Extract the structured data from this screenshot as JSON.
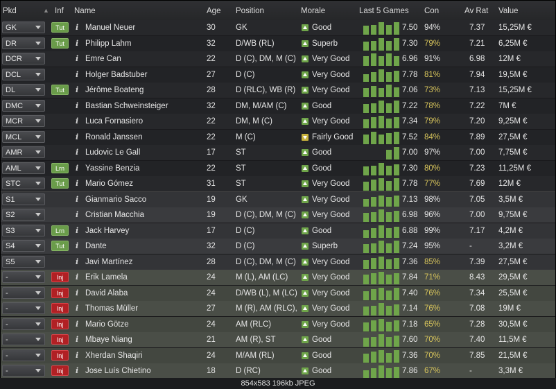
{
  "headers": {
    "pkd": "Pkd",
    "inf": "Inf",
    "name": "Name",
    "age": "Age",
    "position": "Position",
    "morale": "Morale",
    "last5": "Last 5 Games",
    "con": "Con",
    "avrat": "Av Rat",
    "value": "Value"
  },
  "colors": {
    "morale_good": "#6fa54a",
    "morale_fair": "#c8b23d",
    "bar": "#6fa54a",
    "con_low": "#d7c45b",
    "tut_badge": "#6a9c4a",
    "inj_badge": "#b12024"
  },
  "players": [
    {
      "pkd": "GK",
      "inf": "Tut",
      "name": "Manuel Neuer",
      "age": "30",
      "position": "GK",
      "morale": "Good",
      "morale_icon": "up",
      "bars": [
        0.7,
        0.8,
        1.0,
        0.8,
        1.0
      ],
      "rating": "7.50",
      "con": "94%",
      "con_low": false,
      "avrat": "7.37",
      "value": "15,25M €"
    },
    {
      "pkd": "DR",
      "inf": "Tut",
      "name": "Philipp Lahm",
      "age": "32",
      "position": "D/WB (RL)",
      "morale": "Superb",
      "morale_icon": "up",
      "bars": [
        0.7,
        0.8,
        1.0,
        0.8,
        1.0
      ],
      "rating": "7.30",
      "con": "79%",
      "con_low": true,
      "avrat": "7.21",
      "value": "6,25M €"
    },
    {
      "pkd": "DCR",
      "inf": "",
      "name": "Emre Can",
      "age": "22",
      "position": "D (C), DM, M (C)",
      "morale": "Very Good",
      "morale_icon": "up",
      "bars": [
        0.8,
        1.0,
        0.8,
        1.0,
        0.8
      ],
      "rating": "6.96",
      "con": "91%",
      "con_low": false,
      "avrat": "6.98",
      "value": "12M €"
    },
    {
      "pkd": "DCL",
      "inf": "",
      "name": "Holger Badstuber",
      "age": "27",
      "position": "D (C)",
      "morale": "Very Good",
      "morale_icon": "up",
      "bars": [
        0.6,
        0.8,
        1.0,
        0.8,
        0.9
      ],
      "rating": "7.78",
      "con": "81%",
      "con_low": true,
      "avrat": "7.94",
      "value": "19,5M €"
    },
    {
      "pkd": "DL",
      "inf": "Tut",
      "name": "Jérôme Boateng",
      "age": "28",
      "position": "D (RLC), WB (R)",
      "morale": "Very Good",
      "morale_icon": "up",
      "bars": [
        0.7,
        0.9,
        0.7,
        1.0,
        0.8
      ],
      "rating": "7.06",
      "con": "73%",
      "con_low": true,
      "avrat": "7.13",
      "value": "15,25M €"
    },
    {
      "pkd": "DMC",
      "inf": "",
      "name": "Bastian Schweinsteiger",
      "age": "32",
      "position": "DM, M/AM (C)",
      "morale": "Good",
      "morale_icon": "up",
      "bars": [
        0.7,
        0.8,
        1.0,
        0.8,
        1.0
      ],
      "rating": "7.22",
      "con": "78%",
      "con_low": true,
      "avrat": "7.22",
      "value": "7M €"
    },
    {
      "pkd": "MCR",
      "inf": "",
      "name": "Luca Fornasiero",
      "age": "22",
      "position": "DM, M (C)",
      "morale": "Very Good",
      "morale_icon": "up",
      "bars": [
        0.7,
        0.9,
        1.0,
        0.8,
        0.9
      ],
      "rating": "7.34",
      "con": "79%",
      "con_low": true,
      "avrat": "7.20",
      "value": "9,25M €"
    },
    {
      "pkd": "MCL",
      "inf": "",
      "name": "Ronald Janssen",
      "age": "22",
      "position": "M (C)",
      "morale": "Fairly Good",
      "morale_icon": "down",
      "bars": [
        0.8,
        1.0,
        0.8,
        0.9,
        1.0
      ],
      "rating": "7.52",
      "con": "84%",
      "con_low": true,
      "avrat": "7.89",
      "value": "27,5M €"
    },
    {
      "pkd": "AMR",
      "inf": "",
      "name": "Ludovic Le Gall",
      "age": "17",
      "position": "ST",
      "morale": "Good",
      "morale_icon": "up",
      "bars": [
        0,
        0,
        0,
        0.8,
        1.0
      ],
      "rating": "7.00",
      "con": "97%",
      "con_low": false,
      "avrat": "7.00",
      "value": "7,75M €"
    },
    {
      "pkd": "AML",
      "inf": "Lrn",
      "name": "Yassine Benzia",
      "age": "22",
      "position": "ST",
      "morale": "Good",
      "morale_icon": "up",
      "bars": [
        0.7,
        0.8,
        1.0,
        0.8,
        0.9
      ],
      "rating": "7.30",
      "con": "80%",
      "con_low": true,
      "avrat": "7.23",
      "value": "11,25M €"
    },
    {
      "pkd": "STC",
      "inf": "Tut",
      "name": "Mario Gómez",
      "age": "31",
      "position": "ST",
      "morale": "Very Good",
      "morale_icon": "up",
      "bars": [
        0.7,
        0.9,
        1.0,
        0.8,
        1.0
      ],
      "rating": "7.78",
      "con": "77%",
      "con_low": true,
      "avrat": "7.69",
      "value": "12M €"
    },
    {
      "pkd": "S1",
      "inf": "",
      "name": "Gianmario Sacco",
      "age": "19",
      "position": "GK",
      "morale": "Very Good",
      "morale_icon": "up",
      "bars": [
        0.6,
        0.8,
        0.9,
        0.8,
        0.9
      ],
      "rating": "7.13",
      "con": "98%",
      "con_low": false,
      "avrat": "7.05",
      "value": "3,5M €"
    },
    {
      "pkd": "S2",
      "inf": "",
      "name": "Cristian Macchia",
      "age": "19",
      "position": "D (C), DM, M (C)",
      "morale": "Very Good",
      "morale_icon": "up",
      "bars": [
        0.7,
        0.8,
        1.0,
        0.8,
        0.9
      ],
      "rating": "6.98",
      "con": "96%",
      "con_low": false,
      "avrat": "7.00",
      "value": "9,75M €"
    },
    {
      "pkd": "S3",
      "inf": "Lrn",
      "name": "Jack Harvey",
      "age": "17",
      "position": "D (C)",
      "morale": "Good",
      "morale_icon": "up",
      "bars": [
        0.6,
        0.8,
        1.0,
        0.8,
        0.9
      ],
      "rating": "6.88",
      "con": "99%",
      "con_low": false,
      "avrat": "7.17",
      "value": "4,2M €"
    },
    {
      "pkd": "S4",
      "inf": "Tut",
      "name": "Dante",
      "age": "32",
      "position": "D (C)",
      "morale": "Superb",
      "morale_icon": "up",
      "bars": [
        0.7,
        0.8,
        1.0,
        0.8,
        1.0
      ],
      "rating": "7.24",
      "con": "95%",
      "con_low": false,
      "avrat": "-",
      "value": "3,2M €"
    },
    {
      "pkd": "S5",
      "inf": "",
      "name": "Javi Martínez",
      "age": "28",
      "position": "D (C), DM, M (C)",
      "morale": "Very Good",
      "morale_icon": "up",
      "bars": [
        0.7,
        0.9,
        1.0,
        0.8,
        0.9
      ],
      "rating": "7.36",
      "con": "85%",
      "con_low": true,
      "avrat": "7.39",
      "value": "27,5M €"
    },
    {
      "pkd": "-",
      "inf": "Inj",
      "name": "Erik Lamela",
      "age": "24",
      "position": "M (L), AM (LC)",
      "morale": "Very Good",
      "morale_icon": "up",
      "bars": [
        0.8,
        0.9,
        1.0,
        0.8,
        0.9
      ],
      "rating": "7.84",
      "con": "71%",
      "con_low": true,
      "avrat": "8.43",
      "value": "29,5M €"
    },
    {
      "pkd": "-",
      "inf": "Inj",
      "name": "David Alaba",
      "age": "24",
      "position": "D/WB (L), M (LC)",
      "morale": "Very Good",
      "morale_icon": "up",
      "bars": [
        0.7,
        0.9,
        1.0,
        0.8,
        1.0
      ],
      "rating": "7.40",
      "con": "76%",
      "con_low": true,
      "avrat": "7.34",
      "value": "25,5M €"
    },
    {
      "pkd": "-",
      "inf": "Inj",
      "name": "Thomas Müller",
      "age": "27",
      "position": "M (R), AM (RLC), ...",
      "morale": "Very Good",
      "morale_icon": "up",
      "bars": [
        0.7,
        0.8,
        1.0,
        0.8,
        0.9
      ],
      "rating": "7.14",
      "con": "76%",
      "con_low": true,
      "avrat": "7.08",
      "value": "19M €"
    },
    {
      "pkd": "-",
      "inf": "Inj",
      "name": "Mario Götze",
      "age": "24",
      "position": "AM (RLC)",
      "morale": "Very Good",
      "morale_icon": "up",
      "bars": [
        0.7,
        0.9,
        1.0,
        0.8,
        0.9
      ],
      "rating": "7.18",
      "con": "65%",
      "con_low": true,
      "avrat": "7.28",
      "value": "30,5M €"
    },
    {
      "pkd": "-",
      "inf": "Inj",
      "name": "Mbaye Niang",
      "age": "21",
      "position": "AM (R), ST",
      "morale": "Good",
      "morale_icon": "up",
      "bars": [
        0.7,
        0.8,
        1.0,
        0.8,
        0.9
      ],
      "rating": "7.60",
      "con": "70%",
      "con_low": true,
      "avrat": "7.40",
      "value": "11,5M €"
    },
    {
      "pkd": "-",
      "inf": "Inj",
      "name": "Xherdan Shaqiri",
      "age": "24",
      "position": "M/AM (RL)",
      "morale": "Good",
      "morale_icon": "up",
      "bars": [
        0.7,
        0.9,
        1.0,
        0.8,
        1.0
      ],
      "rating": "7.36",
      "con": "70%",
      "con_low": true,
      "avrat": "7.85",
      "value": "21,5M €"
    },
    {
      "pkd": "-",
      "inf": "Inj",
      "name": "Jose Luís Chietino",
      "age": "18",
      "position": "D (RC)",
      "morale": "Good",
      "morale_icon": "up",
      "bars": [
        0.6,
        0.8,
        1.0,
        0.8,
        0.9
      ],
      "rating": "7.86",
      "con": "67%",
      "con_low": true,
      "avrat": "-",
      "value": "3,3M €"
    }
  ],
  "statusbar": {
    "text": "854x583  196kb  JPEG"
  }
}
